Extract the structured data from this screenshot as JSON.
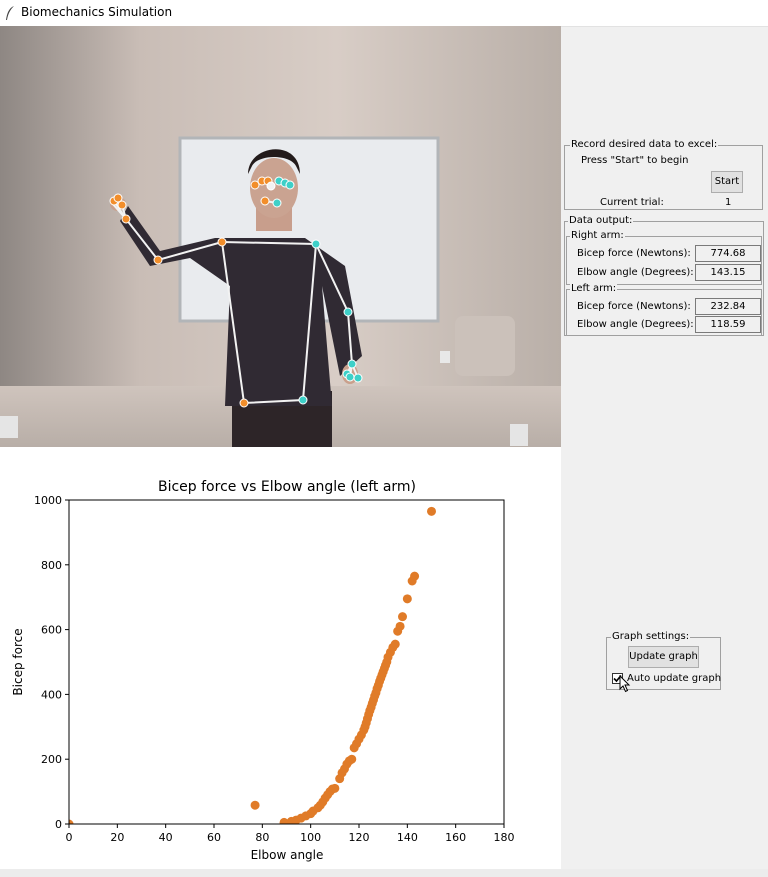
{
  "window": {
    "title": "Biomechanics Simulation",
    "icon": "feather-icon"
  },
  "record_frame": {
    "label": "Record desired data to excel:",
    "instruction": "Press \"Start\" to begin",
    "start_button": "Start",
    "trial_label": "Current trial:",
    "trial_value": "1"
  },
  "data_output": {
    "label": "Data output:",
    "right_arm": {
      "label": "Right arm:",
      "force_label": "Bicep force (Newtons):",
      "force_value": "774.68",
      "angle_label": "Elbow angle (Degrees):",
      "angle_value": "143.15"
    },
    "left_arm": {
      "label": "Left arm:",
      "force_label": "Bicep force (Newtons):",
      "force_value": "232.84",
      "angle_label": "Elbow angle (Degrees):",
      "angle_value": "118.59"
    }
  },
  "graph_settings": {
    "label": "Graph settings:",
    "update_button": "Update graph",
    "auto_update_label": "Auto update graph",
    "auto_update_checked": true
  },
  "chart_data": {
    "type": "scatter",
    "title": "Bicep force vs Elbow angle (left arm)",
    "xlabel": "Elbow angle",
    "ylabel": "Bicep force",
    "xlim": [
      0,
      180
    ],
    "ylim": [
      0,
      1000
    ],
    "xticks": [
      "0",
      "20",
      "40",
      "60",
      "80",
      "100",
      "120",
      "140",
      "160",
      "180"
    ],
    "yticks": [
      "0",
      "200",
      "400",
      "600",
      "800",
      "1000"
    ],
    "grid": false,
    "marker_color": "#e07b28",
    "x": [
      0,
      77,
      89,
      92,
      94,
      96,
      98,
      100,
      101,
      103,
      104,
      105,
      106,
      107,
      108,
      109,
      110,
      112,
      113,
      114,
      115,
      116,
      117,
      118,
      119,
      120,
      121,
      122,
      122.5,
      123,
      123.5,
      124,
      124.5,
      125,
      125.5,
      126,
      126.5,
      127,
      127.5,
      128,
      128.5,
      129,
      129.5,
      130,
      130.5,
      131,
      131.5,
      132,
      133,
      134,
      135,
      136,
      137,
      138,
      140,
      142,
      143,
      150
    ],
    "y": [
      0,
      58,
      5,
      8,
      12,
      18,
      25,
      32,
      40,
      50,
      58,
      68,
      80,
      90,
      100,
      108,
      110,
      140,
      158,
      170,
      185,
      195,
      200,
      235,
      248,
      262,
      275,
      290,
      300,
      312,
      325,
      338,
      350,
      360,
      372,
      383,
      395,
      405,
      418,
      428,
      440,
      450,
      460,
      470,
      480,
      490,
      500,
      515,
      530,
      545,
      555,
      595,
      610,
      640,
      695,
      750,
      765,
      965
    ]
  }
}
